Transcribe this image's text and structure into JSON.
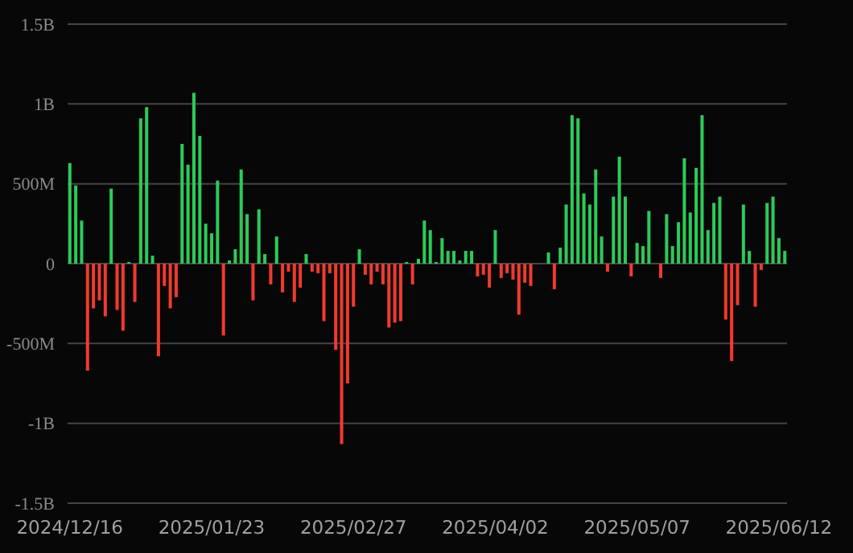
{
  "chart_data": {
    "type": "bar",
    "categories": [
      "2024/12/16",
      null,
      null,
      null,
      null,
      null,
      null,
      null,
      null,
      null,
      null,
      null,
      null,
      null,
      null,
      null,
      null,
      null,
      null,
      null,
      null,
      null,
      null,
      null,
      "2025/01/23",
      null,
      null,
      null,
      null,
      null,
      null,
      null,
      null,
      null,
      null,
      null,
      null,
      null,
      null,
      null,
      null,
      null,
      null,
      null,
      null,
      null,
      null,
      null,
      "2025/02/27",
      null,
      null,
      null,
      null,
      null,
      null,
      null,
      null,
      null,
      null,
      null,
      null,
      null,
      null,
      null,
      null,
      null,
      null,
      null,
      null,
      null,
      null,
      null,
      "2025/04/02",
      null,
      null,
      null,
      null,
      null,
      null,
      null,
      null,
      null,
      null,
      null,
      null,
      null,
      null,
      null,
      null,
      null,
      null,
      null,
      null,
      null,
      null,
      null,
      "2025/05/07",
      null,
      null,
      null,
      null,
      null,
      null,
      null,
      null,
      null,
      null,
      null,
      null,
      null,
      null,
      null,
      null,
      null,
      null,
      null,
      null,
      null,
      null,
      null,
      "2025/06/12",
      null
    ],
    "values": [
      630000000,
      490000000,
      270000000,
      -670000000,
      -280000000,
      -230000000,
      -330000000,
      470000000,
      -290000000,
      -420000000,
      10000000,
      -240000000,
      910000000,
      980000000,
      50000000,
      -580000000,
      -140000000,
      -280000000,
      -210000000,
      750000000,
      620000000,
      1070000000,
      800000000,
      250000000,
      190000000,
      520000000,
      -450000000,
      20000000,
      90000000,
      590000000,
      310000000,
      -230000000,
      340000000,
      60000000,
      -130000000,
      170000000,
      -180000000,
      -50000000,
      -240000000,
      -150000000,
      60000000,
      -50000000,
      -60000000,
      -360000000,
      -60000000,
      -540000000,
      -1130000000,
      -750000000,
      -270000000,
      90000000,
      -70000000,
      -130000000,
      -50000000,
      -130000000,
      -400000000,
      -370000000,
      -360000000,
      10000000,
      -130000000,
      30000000,
      270000000,
      210000000,
      10000000,
      160000000,
      80000000,
      80000000,
      20000000,
      80000000,
      80000000,
      -80000000,
      -70000000,
      -150000000,
      210000000,
      -90000000,
      -60000000,
      -100000000,
      -320000000,
      -120000000,
      -140000000,
      0,
      0,
      70000000,
      -160000000,
      100000000,
      370000000,
      930000000,
      910000000,
      440000000,
      370000000,
      590000000,
      170000000,
      -50000000,
      420000000,
      670000000,
      420000000,
      -80000000,
      130000000,
      110000000,
      330000000,
      0,
      -90000000,
      310000000,
      110000000,
      260000000,
      660000000,
      320000000,
      600000000,
      930000000,
      210000000,
      380000000,
      420000000,
      -350000000,
      -610000000,
      -260000000,
      370000000,
      80000000,
      -270000000,
      -40000000,
      380000000,
      420000000,
      160000000,
      80000000
    ],
    "colors": [
      "#2ec95a",
      "#2ec95a",
      "#2ec95a",
      "#f03a2e",
      "#f03a2e",
      "#f03a2e",
      "#f03a2e",
      "#2ec95a",
      "#f03a2e",
      "#f03a2e",
      "#2ec95a",
      "#f03a2e",
      "#2ec95a",
      "#2ec95a",
      "#2ec95a",
      "#f03a2e",
      "#f03a2e",
      "#f03a2e",
      "#f03a2e",
      "#2ec95a",
      "#2ec95a",
      "#2ec95a",
      "#2ec95a",
      "#2ec95a",
      "#2ec95a",
      "#2ec95a",
      "#f03a2e",
      "#2ec95a",
      "#2ec95a",
      "#2ec95a",
      "#2ec95a",
      "#f03a2e",
      "#2ec95a",
      "#2ec95a",
      "#f03a2e",
      "#2ec95a",
      "#f03a2e",
      "#f03a2e",
      "#f03a2e",
      "#f03a2e",
      "#2ec95a",
      "#f03a2e",
      "#f03a2e",
      "#f03a2e",
      "#f03a2e",
      "#f03a2e",
      "#f03a2e",
      "#f03a2e",
      "#f03a2e",
      "#2ec95a",
      "#f03a2e",
      "#f03a2e",
      "#f03a2e",
      "#f03a2e",
      "#f03a2e",
      "#f03a2e",
      "#f03a2e",
      "#2ec95a",
      "#f03a2e",
      "#2ec95a",
      "#2ec95a",
      "#2ec95a",
      "#2ec95a",
      "#2ec95a",
      "#2ec95a",
      "#2ec95a",
      "#2ec95a",
      "#2ec95a",
      "#2ec95a",
      "#f03a2e",
      "#f03a2e",
      "#f03a2e",
      "#2ec95a",
      "#f03a2e",
      "#f03a2e",
      "#f03a2e",
      "#f03a2e",
      "#f03a2e",
      "#f03a2e",
      "#2ec95a",
      "#2ec95a",
      "#2ec95a",
      "#f03a2e",
      "#2ec95a",
      "#2ec95a",
      "#2ec95a",
      "#2ec95a",
      "#2ec95a",
      "#2ec95a",
      "#2ec95a",
      "#2ec95a",
      "#f03a2e",
      "#2ec95a",
      "#2ec95a",
      "#2ec95a",
      "#f03a2e",
      "#2ec95a",
      "#2ec95a",
      "#2ec95a",
      "#2ec95a",
      "#f03a2e",
      "#2ec95a",
      "#2ec95a",
      "#2ec95a",
      "#2ec95a",
      "#2ec95a",
      "#2ec95a",
      "#2ec95a",
      "#2ec95a",
      "#2ec95a",
      "#2ec95a",
      "#f03a2e",
      "#f03a2e",
      "#f03a2e",
      "#2ec95a",
      "#2ec95a",
      "#f03a2e",
      "#f03a2e",
      "#2ec95a",
      "#2ec95a",
      "#2ec95a",
      "#2ec95a"
    ],
    "ylim": [
      -1500000000,
      1500000000
    ],
    "yticks": [
      {
        "value": -1500000000,
        "label": "-1.5B"
      },
      {
        "value": -1000000000,
        "label": "-1B"
      },
      {
        "value": -500000000,
        "label": "-500M"
      },
      0,
      {
        "value": 500000000,
        "label": "500M"
      },
      {
        "value": 1000000000,
        "label": "1B"
      },
      {
        "value": 1500000000,
        "label": "1.5B"
      }
    ],
    "grid": "y"
  }
}
